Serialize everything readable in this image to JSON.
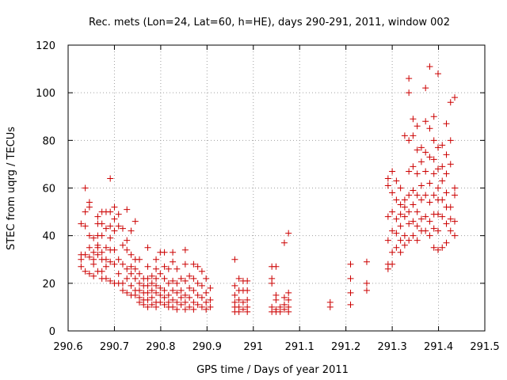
{
  "chart_data": {
    "type": "scatter",
    "title": "Rec. mets (Lon=24, Lat=60, h=HE), days 290-291, 2011, window 002",
    "xlabel": "GPS time / Days of year 2011",
    "ylabel": "STEC from uqrg / TECUs",
    "xlim": [
      290.6,
      291.5
    ],
    "ylim": [
      0,
      120
    ],
    "xticks": [
      290.6,
      290.7,
      290.8,
      290.9,
      291,
      291.1,
      291.2,
      291.3,
      291.4,
      291.5
    ],
    "xtick_labels": [
      "290.6",
      "290.7",
      "290.8",
      "290.9",
      "291",
      "291.1",
      "291.2",
      "291.3",
      "291.4",
      "291.5"
    ],
    "yticks": [
      0,
      20,
      40,
      60,
      80,
      100,
      120
    ],
    "ytick_labels": [
      "0",
      "20",
      "40",
      "60",
      "80",
      "100",
      "120"
    ],
    "grid": true,
    "marker": "plus",
    "color": "#cc0000",
    "points": [
      [
        290.628,
        45
      ],
      [
        290.628,
        30
      ],
      [
        290.628,
        27
      ],
      [
        290.628,
        32
      ],
      [
        290.637,
        60
      ],
      [
        290.637,
        50
      ],
      [
        290.637,
        44
      ],
      [
        290.637,
        32
      ],
      [
        290.637,
        25
      ],
      [
        290.646,
        54
      ],
      [
        290.646,
        52
      ],
      [
        290.646,
        40
      ],
      [
        290.646,
        35
      ],
      [
        290.646,
        31
      ],
      [
        290.646,
        24
      ],
      [
        290.655,
        39
      ],
      [
        290.655,
        33
      ],
      [
        290.655,
        30
      ],
      [
        290.655,
        28
      ],
      [
        290.655,
        23
      ],
      [
        290.664,
        48
      ],
      [
        290.664,
        45
      ],
      [
        290.664,
        40
      ],
      [
        290.664,
        36
      ],
      [
        290.664,
        35
      ],
      [
        290.664,
        32
      ],
      [
        290.664,
        25
      ],
      [
        290.673,
        50
      ],
      [
        290.673,
        45
      ],
      [
        290.673,
        40
      ],
      [
        290.673,
        33
      ],
      [
        290.673,
        30
      ],
      [
        290.673,
        25
      ],
      [
        290.673,
        22
      ],
      [
        290.682,
        50
      ],
      [
        290.682,
        43
      ],
      [
        290.682,
        35
      ],
      [
        290.682,
        30
      ],
      [
        290.682,
        27
      ],
      [
        290.682,
        22
      ],
      [
        290.691,
        64
      ],
      [
        290.691,
        50
      ],
      [
        290.691,
        44
      ],
      [
        290.691,
        39
      ],
      [
        290.691,
        34
      ],
      [
        290.691,
        29
      ],
      [
        290.691,
        21
      ],
      [
        290.7,
        52
      ],
      [
        290.7,
        47
      ],
      [
        290.7,
        42
      ],
      [
        290.7,
        34
      ],
      [
        290.7,
        28
      ],
      [
        290.7,
        20
      ],
      [
        290.709,
        49
      ],
      [
        290.709,
        44
      ],
      [
        290.709,
        30
      ],
      [
        290.709,
        24
      ],
      [
        290.709,
        20
      ],
      [
        290.718,
        43
      ],
      [
        290.718,
        36
      ],
      [
        290.718,
        28
      ],
      [
        290.718,
        20
      ],
      [
        290.718,
        17
      ],
      [
        290.727,
        51
      ],
      [
        290.727,
        38
      ],
      [
        290.727,
        34
      ],
      [
        290.727,
        26
      ],
      [
        290.727,
        22
      ],
      [
        290.727,
        16
      ],
      [
        290.736,
        42
      ],
      [
        290.736,
        32
      ],
      [
        290.736,
        27
      ],
      [
        290.736,
        24
      ],
      [
        290.736,
        19
      ],
      [
        290.736,
        15
      ],
      [
        290.745,
        46
      ],
      [
        290.745,
        30
      ],
      [
        290.745,
        26
      ],
      [
        290.745,
        22
      ],
      [
        290.745,
        17
      ],
      [
        290.745,
        15
      ],
      [
        290.754,
        30
      ],
      [
        290.754,
        24
      ],
      [
        290.754,
        20
      ],
      [
        290.754,
        17
      ],
      [
        290.754,
        14
      ],
      [
        290.754,
        12
      ],
      [
        290.763,
        22
      ],
      [
        290.763,
        19
      ],
      [
        290.763,
        16
      ],
      [
        290.763,
        13
      ],
      [
        290.763,
        11
      ],
      [
        290.772,
        35
      ],
      [
        290.772,
        27
      ],
      [
        290.772,
        22
      ],
      [
        290.772,
        19
      ],
      [
        290.772,
        16
      ],
      [
        290.772,
        13
      ],
      [
        290.772,
        10
      ],
      [
        290.781,
        23
      ],
      [
        290.781,
        20
      ],
      [
        290.781,
        17
      ],
      [
        290.781,
        14
      ],
      [
        290.781,
        11
      ],
      [
        290.79,
        30
      ],
      [
        290.79,
        26
      ],
      [
        290.79,
        22
      ],
      [
        290.79,
        19
      ],
      [
        290.79,
        16
      ],
      [
        290.79,
        12
      ],
      [
        290.79,
        10
      ],
      [
        290.799,
        33
      ],
      [
        290.799,
        24
      ],
      [
        290.799,
        18
      ],
      [
        290.799,
        15
      ],
      [
        290.799,
        12
      ],
      [
        290.808,
        33
      ],
      [
        290.808,
        27
      ],
      [
        290.808,
        22
      ],
      [
        290.808,
        17
      ],
      [
        290.808,
        14
      ],
      [
        290.808,
        11
      ],
      [
        290.817,
        26
      ],
      [
        290.817,
        20
      ],
      [
        290.817,
        15
      ],
      [
        290.817,
        12
      ],
      [
        290.817,
        10
      ],
      [
        290.826,
        33
      ],
      [
        290.826,
        29
      ],
      [
        290.826,
        21
      ],
      [
        290.826,
        17
      ],
      [
        290.826,
        13
      ],
      [
        290.826,
        10
      ],
      [
        290.835,
        26
      ],
      [
        290.835,
        20
      ],
      [
        290.835,
        16
      ],
      [
        290.835,
        12
      ],
      [
        290.835,
        9
      ],
      [
        290.844,
        22
      ],
      [
        290.844,
        17
      ],
      [
        290.844,
        14
      ],
      [
        290.844,
        11
      ],
      [
        290.853,
        34
      ],
      [
        290.853,
        28
      ],
      [
        290.853,
        21
      ],
      [
        290.853,
        15
      ],
      [
        290.853,
        12
      ],
      [
        290.853,
        9
      ],
      [
        290.862,
        23
      ],
      [
        290.862,
        18
      ],
      [
        290.862,
        14
      ],
      [
        290.862,
        10
      ],
      [
        290.871,
        28
      ],
      [
        290.871,
        22
      ],
      [
        290.871,
        17
      ],
      [
        290.871,
        12
      ],
      [
        290.871,
        9
      ],
      [
        290.88,
        27
      ],
      [
        290.88,
        20
      ],
      [
        290.88,
        15
      ],
      [
        290.88,
        11
      ],
      [
        290.889,
        25
      ],
      [
        290.889,
        19
      ],
      [
        290.889,
        14
      ],
      [
        290.889,
        10
      ],
      [
        290.898,
        22
      ],
      [
        290.898,
        16
      ],
      [
        290.898,
        12
      ],
      [
        290.898,
        9
      ],
      [
        290.907,
        18
      ],
      [
        290.907,
        13
      ],
      [
        290.907,
        10
      ],
      [
        290.96,
        30
      ],
      [
        290.96,
        19
      ],
      [
        290.96,
        15
      ],
      [
        290.96,
        12
      ],
      [
        290.96,
        10
      ],
      [
        290.96,
        8
      ],
      [
        290.969,
        22
      ],
      [
        290.969,
        17
      ],
      [
        290.969,
        13
      ],
      [
        290.969,
        10
      ],
      [
        290.969,
        8
      ],
      [
        290.978,
        21
      ],
      [
        290.978,
        17
      ],
      [
        290.978,
        12
      ],
      [
        290.978,
        9
      ],
      [
        290.987,
        21
      ],
      [
        290.987,
        17
      ],
      [
        290.987,
        13
      ],
      [
        290.987,
        10
      ],
      [
        290.987,
        8
      ],
      [
        291.04,
        27
      ],
      [
        291.04,
        22
      ],
      [
        291.04,
        20
      ],
      [
        291.04,
        10
      ],
      [
        291.04,
        8
      ],
      [
        291.049,
        27
      ],
      [
        291.049,
        15
      ],
      [
        291.049,
        13
      ],
      [
        291.049,
        9
      ],
      [
        291.049,
        8
      ],
      [
        291.058,
        10
      ],
      [
        291.058,
        8
      ],
      [
        291.067,
        37
      ],
      [
        291.067,
        14
      ],
      [
        291.067,
        11
      ],
      [
        291.067,
        9
      ],
      [
        291.076,
        41
      ],
      [
        291.076,
        16
      ],
      [
        291.076,
        13
      ],
      [
        291.076,
        10
      ],
      [
        291.076,
        8
      ],
      [
        291.166,
        12
      ],
      [
        291.166,
        10
      ],
      [
        291.21,
        28
      ],
      [
        291.21,
        22
      ],
      [
        291.21,
        16
      ],
      [
        291.21,
        11
      ],
      [
        291.245,
        29
      ],
      [
        291.245,
        20
      ],
      [
        291.245,
        17
      ],
      [
        291.291,
        64
      ],
      [
        291.291,
        61
      ],
      [
        291.291,
        48
      ],
      [
        291.291,
        38
      ],
      [
        291.291,
        28
      ],
      [
        291.291,
        26
      ],
      [
        291.3,
        67
      ],
      [
        291.3,
        58
      ],
      [
        291.3,
        50
      ],
      [
        291.3,
        42
      ],
      [
        291.3,
        33
      ],
      [
        291.3,
        28
      ],
      [
        291.309,
        63
      ],
      [
        291.309,
        55
      ],
      [
        291.309,
        47
      ],
      [
        291.309,
        41
      ],
      [
        291.309,
        35
      ],
      [
        291.318,
        60
      ],
      [
        291.318,
        53
      ],
      [
        291.318,
        49
      ],
      [
        291.318,
        44
      ],
      [
        291.318,
        38
      ],
      [
        291.318,
        33
      ],
      [
        291.327,
        82
      ],
      [
        291.327,
        55
      ],
      [
        291.327,
        52
      ],
      [
        291.327,
        48
      ],
      [
        291.327,
        40
      ],
      [
        291.327,
        36
      ],
      [
        291.336,
        106
      ],
      [
        291.336,
        100
      ],
      [
        291.336,
        80
      ],
      [
        291.336,
        67
      ],
      [
        291.336,
        57
      ],
      [
        291.336,
        50
      ],
      [
        291.336,
        45
      ],
      [
        291.336,
        38
      ],
      [
        291.345,
        89
      ],
      [
        291.345,
        82
      ],
      [
        291.345,
        69
      ],
      [
        291.345,
        59
      ],
      [
        291.345,
        53
      ],
      [
        291.345,
        46
      ],
      [
        291.345,
        40
      ],
      [
        291.354,
        86
      ],
      [
        291.354,
        76
      ],
      [
        291.354,
        66
      ],
      [
        291.354,
        57
      ],
      [
        291.354,
        50
      ],
      [
        291.354,
        44
      ],
      [
        291.354,
        38
      ],
      [
        291.363,
        77
      ],
      [
        291.363,
        71
      ],
      [
        291.363,
        61
      ],
      [
        291.363,
        55
      ],
      [
        291.363,
        47
      ],
      [
        291.363,
        42
      ],
      [
        291.372,
        102
      ],
      [
        291.372,
        88
      ],
      [
        291.372,
        75
      ],
      [
        291.372,
        67
      ],
      [
        291.372,
        57
      ],
      [
        291.372,
        48
      ],
      [
        291.372,
        42
      ],
      [
        291.381,
        111
      ],
      [
        291.381,
        85
      ],
      [
        291.381,
        73
      ],
      [
        291.381,
        62
      ],
      [
        291.381,
        54
      ],
      [
        291.381,
        46
      ],
      [
        291.381,
        40
      ],
      [
        291.39,
        90
      ],
      [
        291.39,
        80
      ],
      [
        291.39,
        72
      ],
      [
        291.39,
        66
      ],
      [
        291.39,
        57
      ],
      [
        291.39,
        49
      ],
      [
        291.39,
        43
      ],
      [
        291.39,
        35
      ],
      [
        291.399,
        108
      ],
      [
        291.399,
        77
      ],
      [
        291.399,
        68
      ],
      [
        291.399,
        60
      ],
      [
        291.399,
        55
      ],
      [
        291.399,
        49
      ],
      [
        291.399,
        42
      ],
      [
        291.399,
        34
      ],
      [
        291.408,
        78
      ],
      [
        291.408,
        69
      ],
      [
        291.408,
        63
      ],
      [
        291.408,
        55
      ],
      [
        291.408,
        48
      ],
      [
        291.408,
        35
      ],
      [
        291.417,
        87
      ],
      [
        291.417,
        74
      ],
      [
        291.417,
        66
      ],
      [
        291.417,
        58
      ],
      [
        291.417,
        52
      ],
      [
        291.417,
        45
      ],
      [
        291.417,
        37
      ],
      [
        291.426,
        96
      ],
      [
        291.426,
        80
      ],
      [
        291.426,
        70
      ],
      [
        291.426,
        52
      ],
      [
        291.426,
        47
      ],
      [
        291.426,
        42
      ],
      [
        291.435,
        98
      ],
      [
        291.435,
        60
      ],
      [
        291.435,
        57
      ],
      [
        291.435,
        46
      ],
      [
        291.435,
        40
      ]
    ]
  }
}
